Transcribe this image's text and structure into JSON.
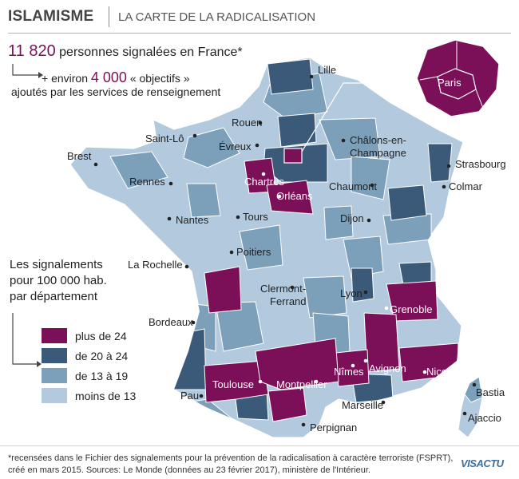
{
  "header": {
    "title": "ISLAMISME",
    "subtitle": "LA CARTE DE LA RADICALISATION"
  },
  "stats": {
    "total_number": "11 820",
    "total_text": "personnes signalées en France*",
    "extra_prefix": "+ environ",
    "extra_number": "4 000",
    "extra_text": "« objectifs »",
    "extra_line2": "ajoutés par les services de renseignement"
  },
  "legend": {
    "title_line1": "Les signalements",
    "title_line2": "pour 100 000 hab.",
    "title_line3": "par département",
    "items": [
      {
        "label": "plus de 24",
        "color": "#7b1058"
      },
      {
        "label": "de 20 à 24",
        "color": "#3b5a7a"
      },
      {
        "label": "de 13 à 19",
        "color": "#7c9fba"
      },
      {
        "label": "moins de 13",
        "color": "#b3cade"
      }
    ]
  },
  "inset": {
    "label": "Paris"
  },
  "cities": [
    {
      "name": "Lille",
      "tone": "dark"
    },
    {
      "name": "Rouen",
      "tone": "dark"
    },
    {
      "name": "Saint-Lô",
      "tone": "dark"
    },
    {
      "name": "Évreux",
      "tone": "dark"
    },
    {
      "name": "Châlons-en-",
      "tone": "dark"
    },
    {
      "name": "Champagne",
      "tone": "dark"
    },
    {
      "name": "Brest",
      "tone": "dark"
    },
    {
      "name": "Strasbourg",
      "tone": "dark"
    },
    {
      "name": "Rennes",
      "tone": "dark"
    },
    {
      "name": "Chartres",
      "tone": "light"
    },
    {
      "name": "Chaumont",
      "tone": "dark"
    },
    {
      "name": "Colmar",
      "tone": "dark"
    },
    {
      "name": "Orléans",
      "tone": "light"
    },
    {
      "name": "Nantes",
      "tone": "dark"
    },
    {
      "name": "Tours",
      "tone": "dark"
    },
    {
      "name": "Dijon",
      "tone": "dark"
    },
    {
      "name": "Poitiers",
      "tone": "dark"
    },
    {
      "name": "La Rochelle",
      "tone": "dark"
    },
    {
      "name": "Clermont-",
      "tone": "dark"
    },
    {
      "name": "Ferrand",
      "tone": "dark"
    },
    {
      "name": "Lyon",
      "tone": "dark"
    },
    {
      "name": "Grenoble",
      "tone": "light"
    },
    {
      "name": "Bordeaux",
      "tone": "dark"
    },
    {
      "name": "Avignon",
      "tone": "light"
    },
    {
      "name": "Nîmes",
      "tone": "light"
    },
    {
      "name": "Nice",
      "tone": "light"
    },
    {
      "name": "Toulouse",
      "tone": "light"
    },
    {
      "name": "Montpellier",
      "tone": "light"
    },
    {
      "name": "Pau",
      "tone": "dark"
    },
    {
      "name": "Bastia",
      "tone": "dark"
    },
    {
      "name": "Marseille",
      "tone": "dark"
    },
    {
      "name": "Ajaccio",
      "tone": "dark"
    },
    {
      "name": "Perpignan",
      "tone": "dark"
    }
  ],
  "footer": {
    "line1": "*recensées dans le Fichier des signalements pour la prévention de la radicalisation à caractère terroriste (FSPRT),",
    "line2": "créé en mars 2015. Sources: Le Monde (données au 23 février 2017), ministère de l'Intérieur.",
    "logo_a": "VIS",
    "logo_b": "ACTU"
  },
  "colors": {
    "purple": "#7b1058",
    "dark_blue": "#3b5a7a",
    "mid_blue": "#7c9fba",
    "light_blue": "#b3cade"
  }
}
